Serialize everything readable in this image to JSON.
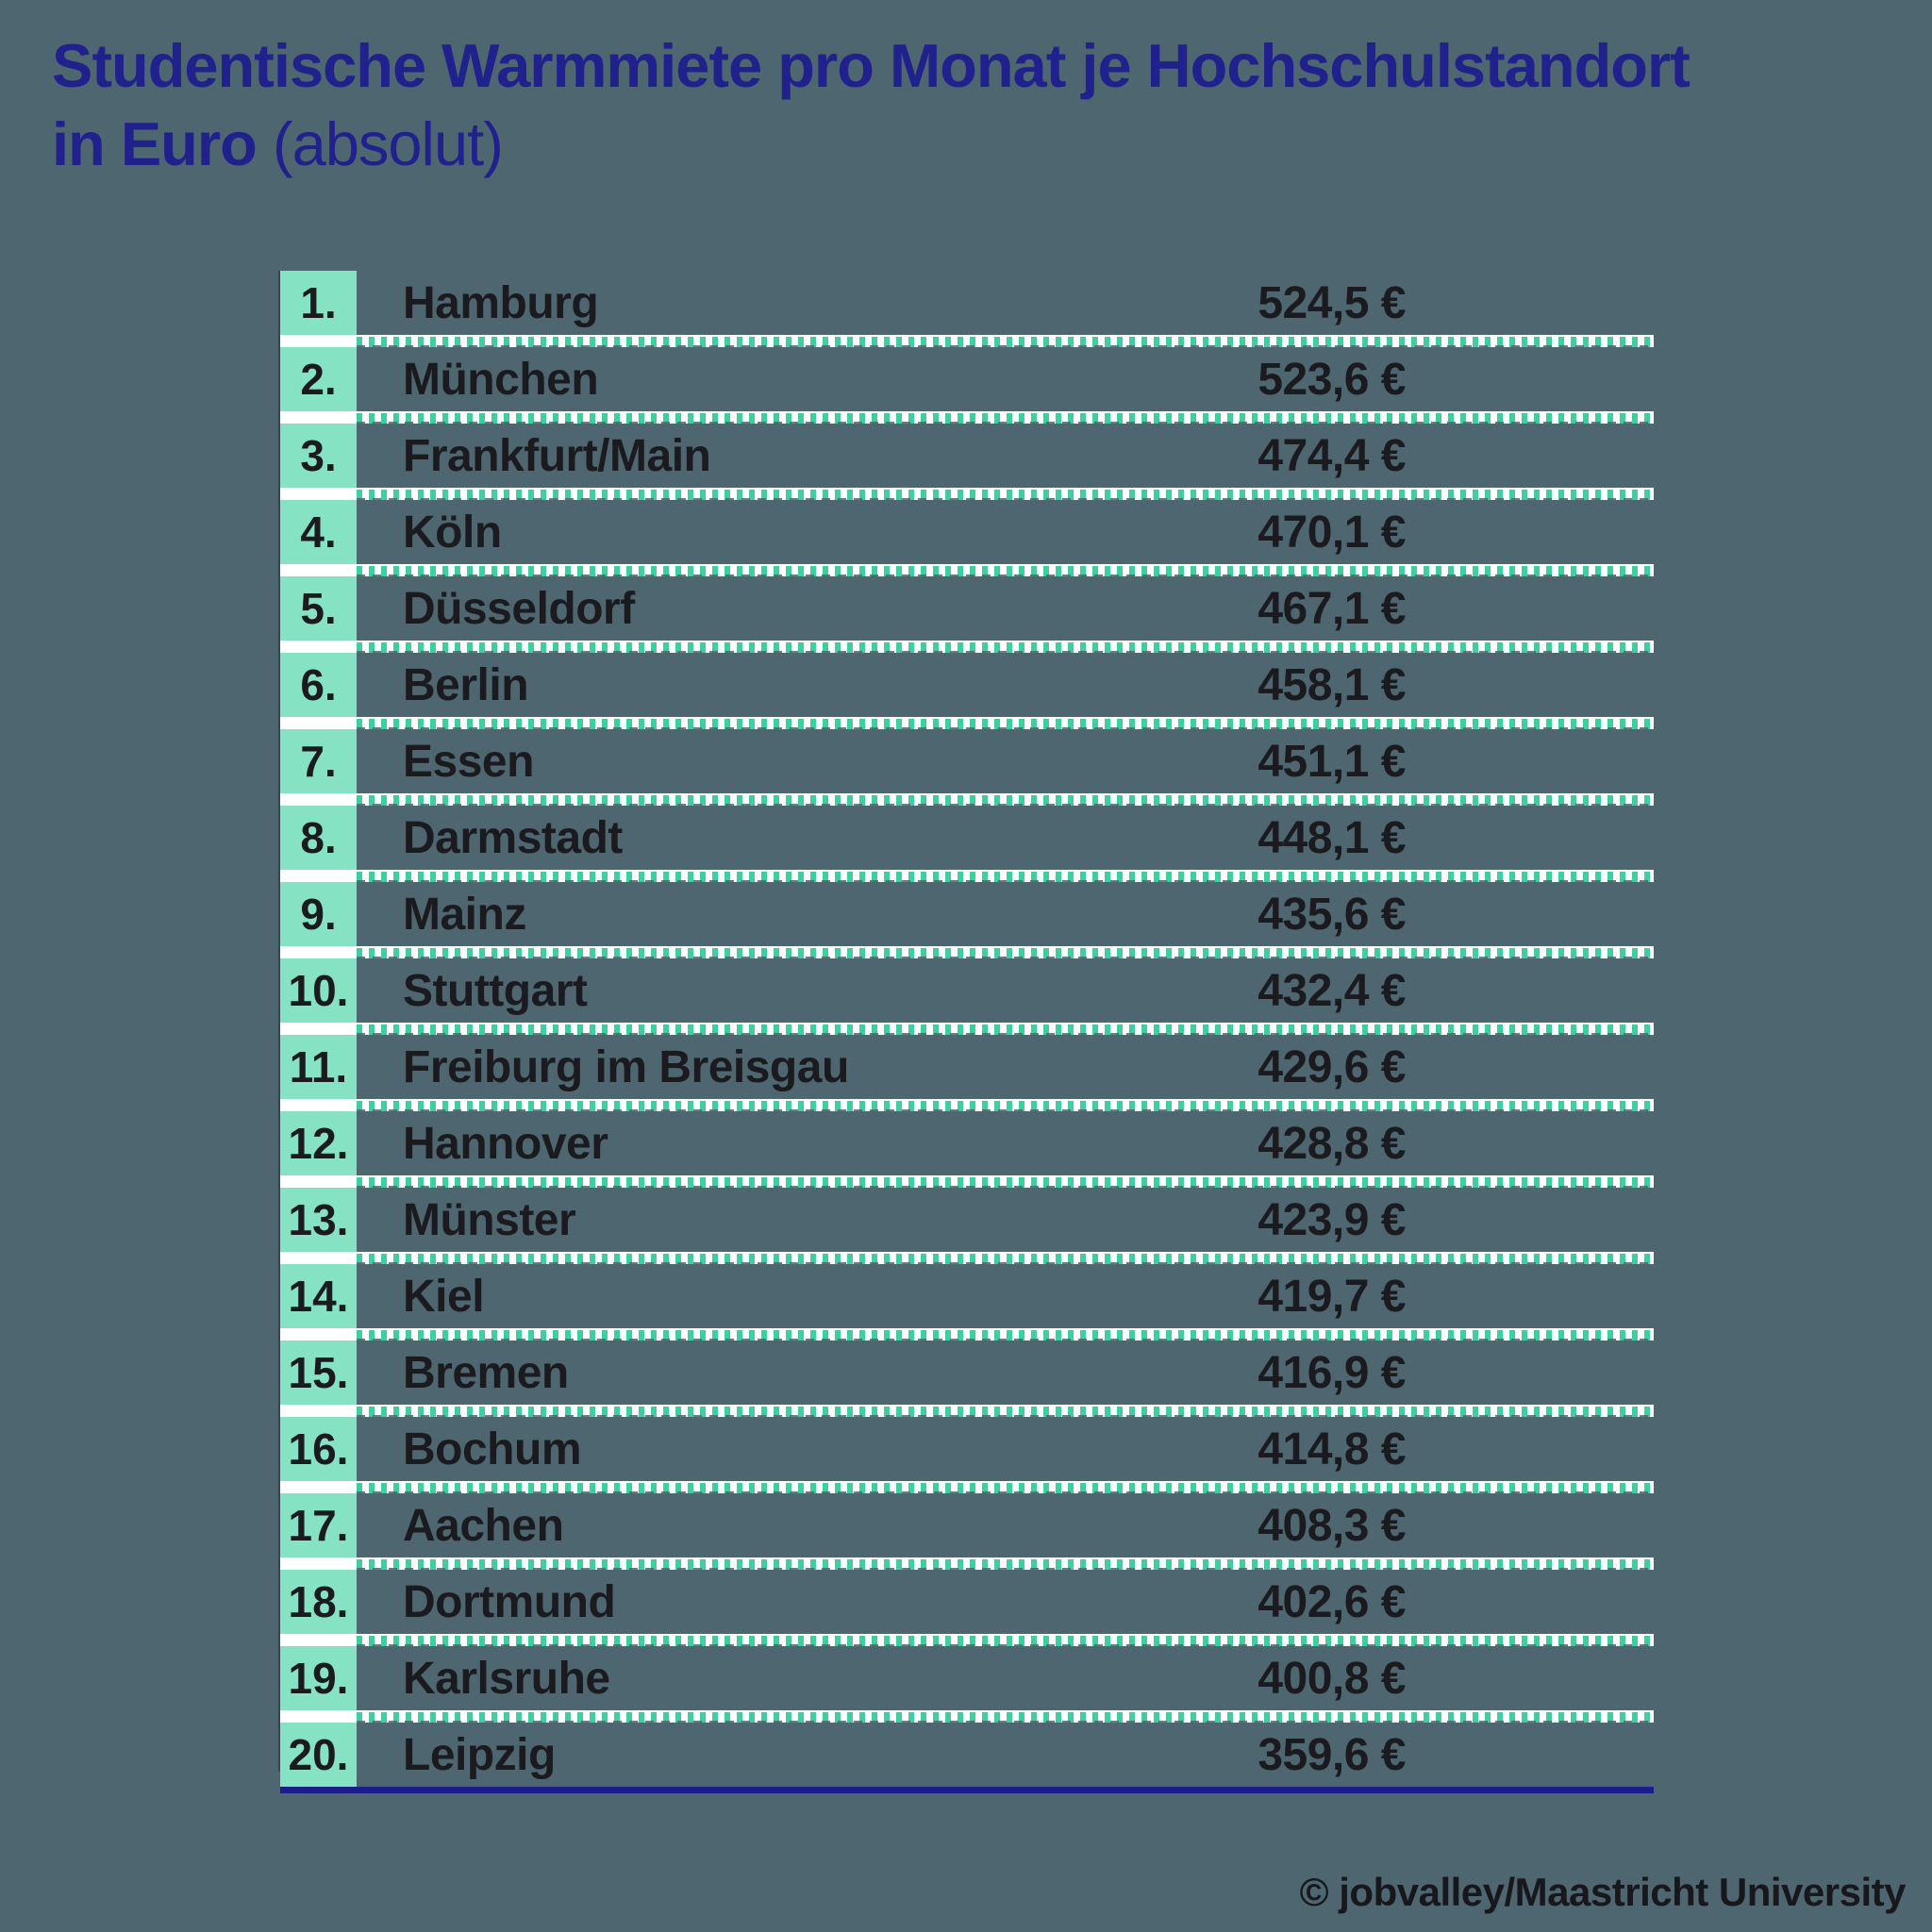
{
  "title": {
    "line1": "Studentische Warmmiete pro Monat je Hochschulstandort",
    "line2_bold": "in Euro",
    "line2_light": "(absolut)"
  },
  "footer": {
    "credit": "© jobvalley/Maastricht University"
  },
  "colors": {
    "background": "#4d6670",
    "title_navy": "#20218d",
    "rank_cell_green": "#85e3c4",
    "separator_tick_green": "#3ecfa0",
    "separator_white": "#ffffff",
    "bottom_line_navy": "#1b1d8c",
    "text_dark": "#1b1b1f"
  },
  "chart_data": {
    "type": "table",
    "title": "Studentische Warmmiete pro Monat je Hochschulstandort in Euro (absolut)",
    "unit": "EUR pro Monat",
    "rows": [
      {
        "rank": "1.",
        "city": "Hamburg",
        "value": 524.5,
        "label": "524,5 €"
      },
      {
        "rank": "2.",
        "city": "München",
        "value": 523.6,
        "label": "523,6 €"
      },
      {
        "rank": "3.",
        "city": "Frankfurt/Main",
        "value": 474.4,
        "label": "474,4 €"
      },
      {
        "rank": "4.",
        "city": "Köln",
        "value": 470.1,
        "label": "470,1 €"
      },
      {
        "rank": "5.",
        "city": "Düsseldorf",
        "value": 467.1,
        "label": "467,1 €"
      },
      {
        "rank": "6.",
        "city": "Berlin",
        "value": 458.1,
        "label": "458,1 €"
      },
      {
        "rank": "7.",
        "city": "Essen",
        "value": 451.1,
        "label": "451,1 €"
      },
      {
        "rank": "8.",
        "city": "Darmstadt",
        "value": 448.1,
        "label": "448,1 €"
      },
      {
        "rank": "9.",
        "city": "Mainz",
        "value": 435.6,
        "label": "435,6 €"
      },
      {
        "rank": "10.",
        "city": "Stuttgart",
        "value": 432.4,
        "label": "432,4 €"
      },
      {
        "rank": "11.",
        "city": "Freiburg im Breisgau",
        "value": 429.6,
        "label": "429,6 €"
      },
      {
        "rank": "12.",
        "city": "Hannover",
        "value": 428.8,
        "label": "428,8 €"
      },
      {
        "rank": "13.",
        "city": "Münster",
        "value": 423.9,
        "label": "423,9 €"
      },
      {
        "rank": "14.",
        "city": "Kiel",
        "value": 419.7,
        "label": "419,7 €"
      },
      {
        "rank": "15.",
        "city": "Bremen",
        "value": 416.9,
        "label": "416,9 €"
      },
      {
        "rank": "16.",
        "city": "Bochum",
        "value": 414.8,
        "label": "414,8 €"
      },
      {
        "rank": "17.",
        "city": "Aachen",
        "value": 408.3,
        "label": "408,3 €"
      },
      {
        "rank": "18.",
        "city": "Dortmund",
        "value": 402.6,
        "label": "402,6 €"
      },
      {
        "rank": "19.",
        "city": "Karlsruhe",
        "value": 400.8,
        "label": "400,8 €"
      },
      {
        "rank": "20.",
        "city": "Leipzig",
        "value": 359.6,
        "label": "359,6 €"
      }
    ]
  }
}
